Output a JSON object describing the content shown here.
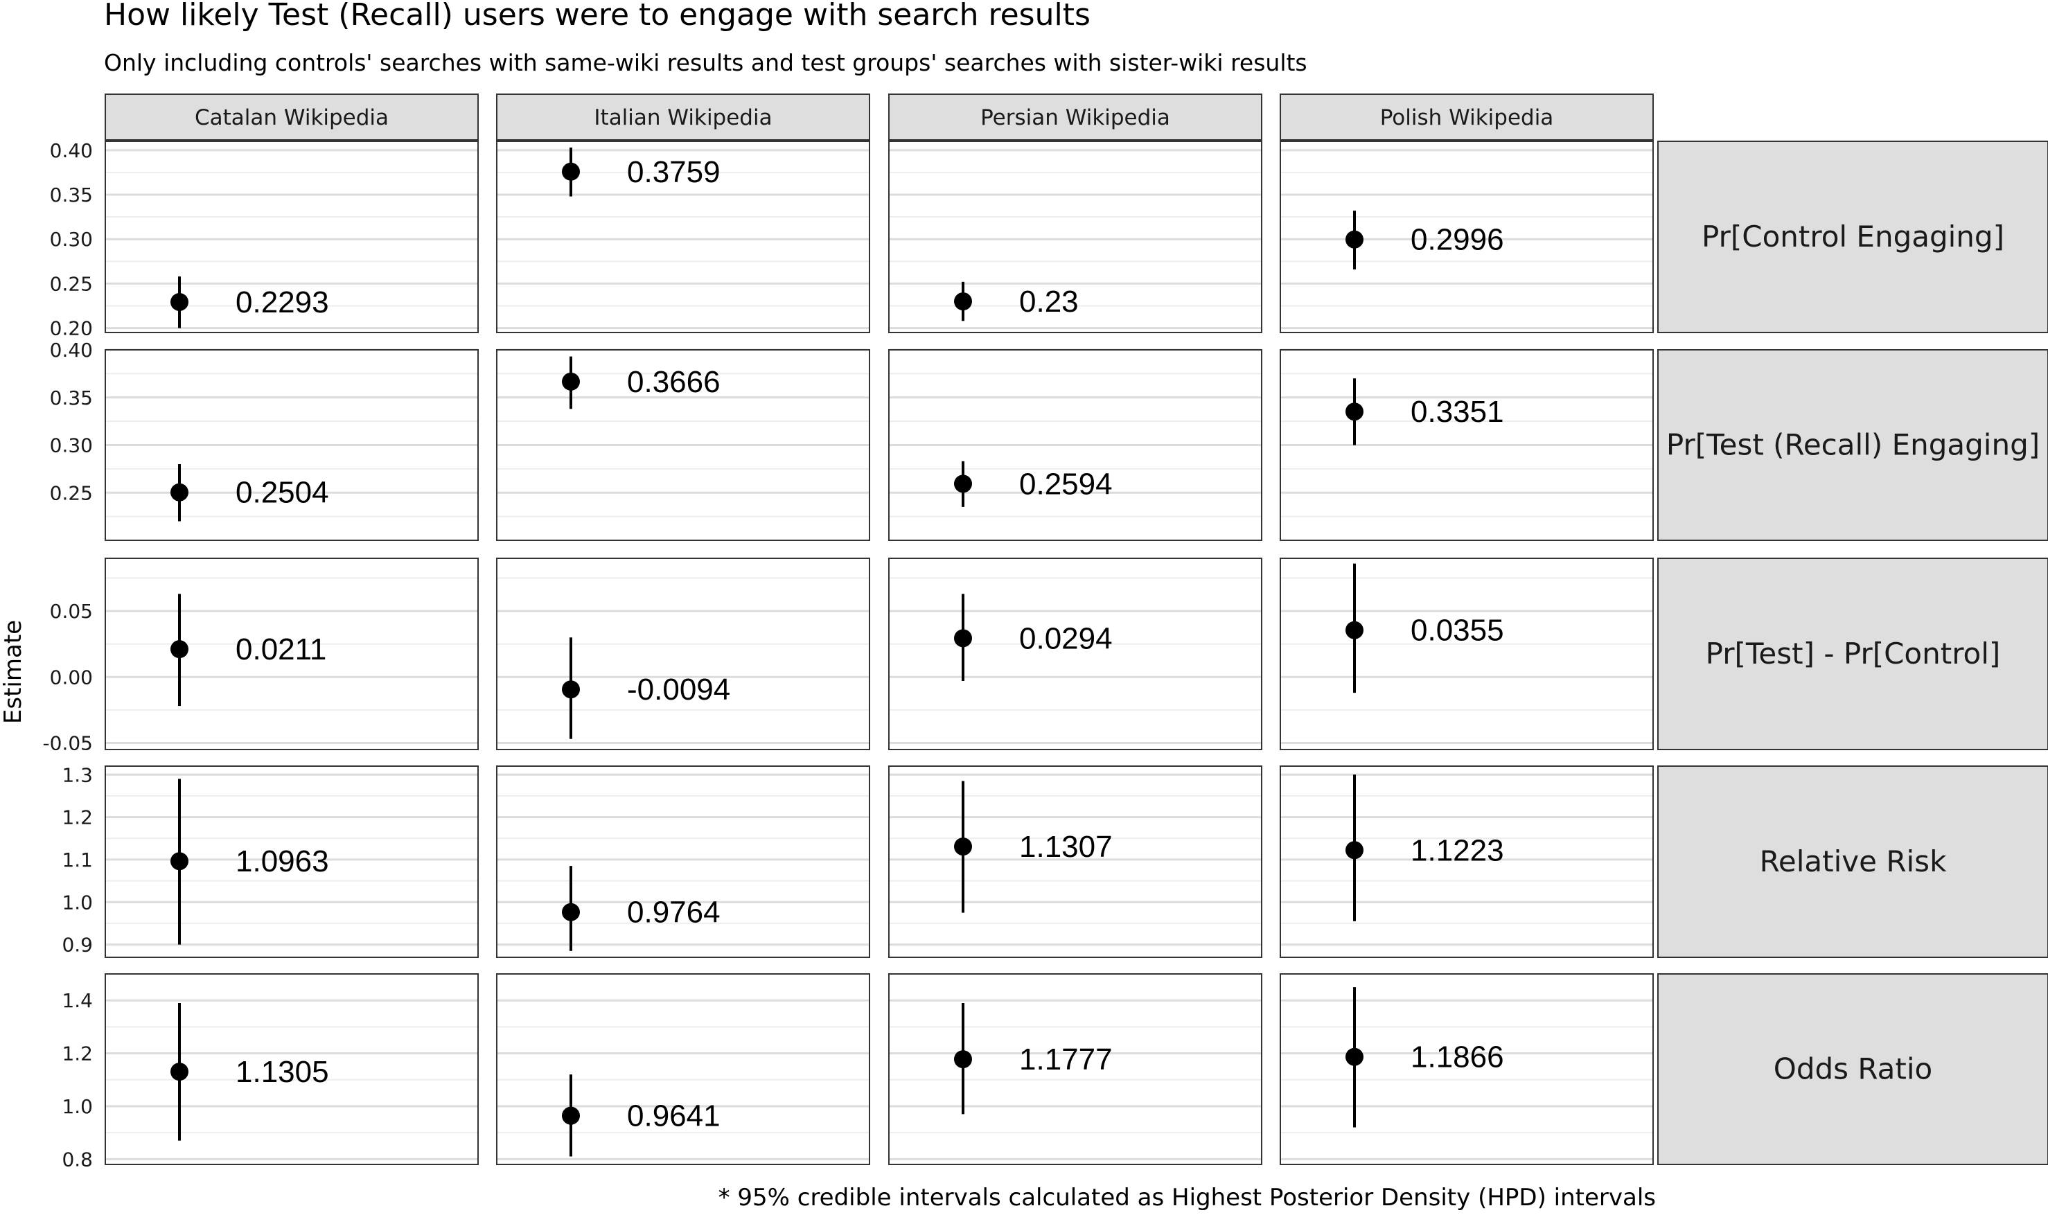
{
  "chart_data": {
    "type": "scatter",
    "title": "How likely Test (Recall) users were to engage with search results",
    "subtitle": "Only including controls' searches with same-wiki results and test groups' searches with sister-wiki results",
    "ylabel": "Estimate",
    "caption": "* 95% credible intervals calculated as Highest Posterior Density (HPD) intervals",
    "columns": [
      "Catalan Wikipedia",
      "Italian Wikipedia",
      "Persian Wikipedia",
      "Polish Wikipedia"
    ],
    "grid": true,
    "rows": [
      {
        "label": "Pr[Control Engaging]",
        "ylim": [
          0.195,
          0.41
        ],
        "ticks": [
          0.2,
          0.25,
          0.3,
          0.35,
          0.4
        ],
        "tick_labels": [
          "0.20",
          "0.25",
          "0.30",
          "0.35",
          "0.40"
        ],
        "points": [
          {
            "estimate": 0.2293,
            "lower": 0.2,
            "upper": 0.258,
            "label": "0.2293"
          },
          {
            "estimate": 0.3759,
            "lower": 0.348,
            "upper": 0.403,
            "label": "0.3759"
          },
          {
            "estimate": 0.23,
            "lower": 0.208,
            "upper": 0.252,
            "label": "0.23"
          },
          {
            "estimate": 0.2996,
            "lower": 0.266,
            "upper": 0.332,
            "label": "0.2996"
          }
        ]
      },
      {
        "label": "Pr[Test (Recall) Engaging]",
        "ylim": [
          0.2,
          0.4
        ],
        "ticks": [
          0.25,
          0.3,
          0.35,
          0.4
        ],
        "tick_labels": [
          "0.25",
          "0.30",
          "0.35",
          "0.40"
        ],
        "points": [
          {
            "estimate": 0.2504,
            "lower": 0.22,
            "upper": 0.28,
            "label": "0.2504"
          },
          {
            "estimate": 0.3666,
            "lower": 0.338,
            "upper": 0.393,
            "label": "0.3666"
          },
          {
            "estimate": 0.2594,
            "lower": 0.235,
            "upper": 0.283,
            "label": "0.2594"
          },
          {
            "estimate": 0.3351,
            "lower": 0.3,
            "upper": 0.37,
            "label": "0.3351"
          }
        ]
      },
      {
        "label": "Pr[Test] - Pr[Control]",
        "ylim": [
          -0.055,
          0.09
        ],
        "ticks": [
          -0.05,
          0.0,
          0.05
        ],
        "tick_labels": [
          "-0.05",
          "0.00",
          "0.05"
        ],
        "points": [
          {
            "estimate": 0.0211,
            "lower": -0.022,
            "upper": 0.063,
            "label": "0.0211"
          },
          {
            "estimate": -0.0094,
            "lower": -0.047,
            "upper": 0.03,
            "label": "-0.0094"
          },
          {
            "estimate": 0.0294,
            "lower": -0.003,
            "upper": 0.063,
            "label": "0.0294"
          },
          {
            "estimate": 0.0355,
            "lower": -0.012,
            "upper": 0.086,
            "label": "0.0355"
          }
        ]
      },
      {
        "label": "Relative Risk",
        "ylim": [
          0.87,
          1.32
        ],
        "ticks": [
          0.9,
          1.0,
          1.1,
          1.2,
          1.3
        ],
        "tick_labels": [
          "0.9",
          "1.0",
          "1.1",
          "1.2",
          "1.3"
        ],
        "points": [
          {
            "estimate": 1.0963,
            "lower": 0.9,
            "upper": 1.29,
            "label": "1.0963"
          },
          {
            "estimate": 0.9764,
            "lower": 0.885,
            "upper": 1.085,
            "label": "0.9764"
          },
          {
            "estimate": 1.1307,
            "lower": 0.975,
            "upper": 1.285,
            "label": "1.1307"
          },
          {
            "estimate": 1.1223,
            "lower": 0.955,
            "upper": 1.3,
            "label": "1.1223"
          }
        ]
      },
      {
        "label": "Odds Ratio",
        "ylim": [
          0.78,
          1.5
        ],
        "ticks": [
          0.8,
          1.0,
          1.2,
          1.4
        ],
        "tick_labels": [
          "0.8",
          "1.0",
          "1.2",
          "1.4"
        ],
        "points": [
          {
            "estimate": 1.1305,
            "lower": 0.87,
            "upper": 1.39,
            "label": "1.1305"
          },
          {
            "estimate": 0.9641,
            "lower": 0.81,
            "upper": 1.12,
            "label": "0.9641"
          },
          {
            "estimate": 1.1777,
            "lower": 0.97,
            "upper": 1.39,
            "label": "1.1777"
          },
          {
            "estimate": 1.1866,
            "lower": 0.92,
            "upper": 1.45,
            "label": "1.1866"
          }
        ]
      }
    ]
  }
}
